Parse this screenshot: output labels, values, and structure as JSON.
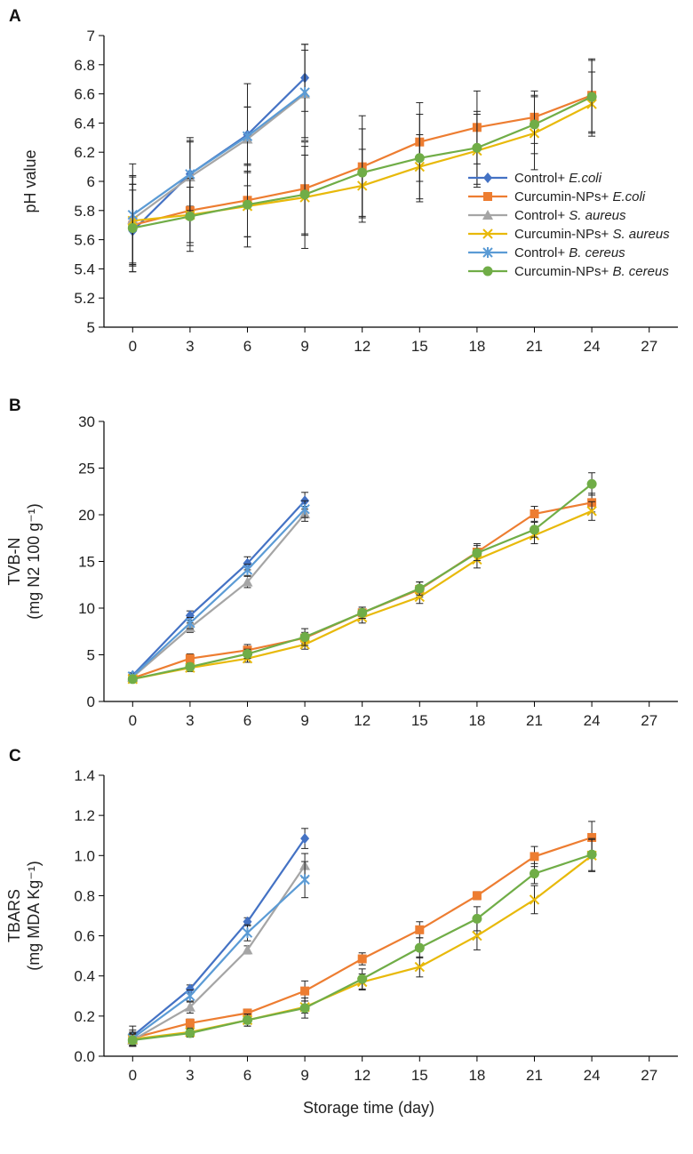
{
  "chart_data": [
    {
      "panel": "A",
      "type": "line",
      "ylabel_lines": [
        "pH value"
      ],
      "xlabel": "",
      "ylim": [
        5,
        7
      ],
      "ytick_step": 0.2,
      "ytick_decimals": 1,
      "xlim": [
        -1.5,
        28.5
      ],
      "xticks": [
        0,
        3,
        6,
        9,
        12,
        15,
        18,
        21,
        24,
        27
      ],
      "legend_position": "middle-right",
      "series": [
        {
          "name": "Control+ ",
          "name_italic": "E.coli",
          "color": "#4472c4",
          "marker": "diamond",
          "x": [
            0,
            3,
            6,
            9
          ],
          "y": [
            5.66,
            6.05,
            6.32,
            6.71
          ],
          "err": [
            0.28,
            0.22,
            0.35,
            0.23
          ]
        },
        {
          "name": "Curcumin-NPs+ ",
          "name_italic": "E.coli",
          "color": "#ed7d31",
          "marker": "square",
          "x": [
            0,
            3,
            6,
            9,
            12,
            15,
            18,
            21,
            24
          ],
          "y": [
            5.7,
            5.8,
            5.87,
            5.95,
            6.1,
            6.27,
            6.37,
            6.44,
            6.59
          ],
          "err": [
            0.28,
            0.22,
            0.25,
            0.32,
            0.35,
            0.27,
            0.25,
            0.18,
            0.25
          ]
        },
        {
          "name": "Control+ ",
          "name_italic": "S. aureus",
          "color": "#a5a5a5",
          "marker": "triangle",
          "x": [
            0,
            3,
            6,
            9
          ],
          "y": [
            5.74,
            6.03,
            6.29,
            6.6
          ],
          "err": [
            0.3,
            0.25,
            0.22,
            0.3
          ]
        },
        {
          "name": "Curcumin-NPs+ ",
          "name_italic": "S. aureus",
          "color": "#e8b90a",
          "marker": "x",
          "x": [
            0,
            3,
            6,
            9,
            12,
            15,
            18,
            21,
            24
          ],
          "y": [
            5.73,
            5.77,
            5.83,
            5.89,
            5.97,
            6.1,
            6.21,
            6.33,
            6.53
          ],
          "err": [
            0.3,
            0.25,
            0.28,
            0.35,
            0.25,
            0.22,
            0.25,
            0.25,
            0.22
          ]
        },
        {
          "name": "Control+ ",
          "name_italic": "B. cereus",
          "color": "#5b9bd5",
          "marker": "star",
          "x": [
            0,
            3,
            6,
            9
          ],
          "y": [
            5.77,
            6.05,
            6.31,
            6.61
          ],
          "err": [
            0.35,
            0.25,
            0.2,
            0.33
          ]
        },
        {
          "name": "Curcumin-NPs+ ",
          "name_italic": "B. cereus",
          "color": "#70ad47",
          "marker": "circle",
          "x": [
            0,
            3,
            6,
            9,
            12,
            15,
            18,
            21,
            24
          ],
          "y": [
            5.68,
            5.76,
            5.84,
            5.91,
            6.06,
            6.16,
            6.23,
            6.39,
            6.58
          ],
          "err": [
            0.3,
            0.2,
            0.22,
            0.27,
            0.3,
            0.3,
            0.25,
            0.2,
            0.25
          ]
        }
      ]
    },
    {
      "panel": "B",
      "type": "line",
      "ylabel_lines": [
        "TVB-N",
        "(mg N2 100 g⁻¹)"
      ],
      "xlabel": "",
      "ylim": [
        0,
        30
      ],
      "ytick_step": 5,
      "ytick_decimals": 0,
      "xlim": [
        -1.5,
        28.5
      ],
      "xticks": [
        0,
        3,
        6,
        9,
        12,
        15,
        18,
        21,
        24,
        27
      ],
      "series": [
        {
          "name": "Control+ E.coli",
          "color": "#4472c4",
          "marker": "diamond",
          "x": [
            0,
            3,
            6,
            9
          ],
          "y": [
            2.8,
            9.2,
            14.8,
            21.5
          ],
          "err": [
            0.3,
            0.5,
            0.7,
            0.9
          ]
        },
        {
          "name": "Curcumin-NPs+ E.coli",
          "color": "#ed7d31",
          "marker": "square",
          "x": [
            0,
            3,
            6,
            9,
            12,
            15,
            18,
            21,
            24
          ],
          "y": [
            2.5,
            4.6,
            5.5,
            6.8,
            9.5,
            12.0,
            16.0,
            20.1,
            21.3
          ],
          "err": [
            0.3,
            0.5,
            0.6,
            0.6,
            0.6,
            0.8,
            0.9,
            0.8,
            1.0
          ]
        },
        {
          "name": "Control+ S. aureus",
          "color": "#a5a5a5",
          "marker": "triangle",
          "x": [
            0,
            3,
            6,
            9
          ],
          "y": [
            2.6,
            7.9,
            12.8,
            20.1
          ],
          "err": [
            0.3,
            0.5,
            0.6,
            0.8
          ]
        },
        {
          "name": "Curcumin-NPs+ S. aureus",
          "color": "#e8b90a",
          "marker": "x",
          "x": [
            0,
            3,
            6,
            9,
            12,
            15,
            18,
            21,
            24
          ],
          "y": [
            2.4,
            3.6,
            4.6,
            6.1,
            9.0,
            11.2,
            15.2,
            17.8,
            20.4
          ],
          "err": [
            0.2,
            0.4,
            0.4,
            0.5,
            0.6,
            0.7,
            0.9,
            0.9,
            1.0
          ]
        },
        {
          "name": "Control+ B. cereus",
          "color": "#5b9bd5",
          "marker": "star",
          "x": [
            0,
            3,
            6,
            9
          ],
          "y": [
            2.7,
            8.4,
            14.1,
            20.6
          ],
          "err": [
            0.3,
            0.6,
            0.6,
            0.9
          ]
        },
        {
          "name": "Curcumin-NPs+ B. cereus",
          "color": "#70ad47",
          "marker": "circle",
          "x": [
            0,
            3,
            6,
            9,
            12,
            15,
            18,
            21,
            24
          ],
          "y": [
            2.4,
            3.7,
            5.1,
            6.9,
            9.5,
            12.1,
            15.9,
            18.4,
            23.3
          ],
          "err": [
            0.2,
            0.3,
            0.5,
            0.9,
            0.6,
            0.7,
            0.8,
            0.8,
            1.2
          ]
        }
      ]
    },
    {
      "panel": "C",
      "type": "line",
      "ylabel_lines": [
        "TBARS",
        "(mg MDA Kg⁻¹)"
      ],
      "xlabel": "Storage time (day)",
      "ylim": [
        0,
        1.4
      ],
      "ytick_step": 0.2,
      "ytick_decimals": 1,
      "xlim": [
        -1.5,
        28.5
      ],
      "xticks": [
        0,
        3,
        6,
        9,
        12,
        15,
        18,
        21,
        24,
        27
      ],
      "series": [
        {
          "name": "Control+ E.coli",
          "color": "#4472c4",
          "marker": "diamond",
          "x": [
            0,
            3,
            6,
            9
          ],
          "y": [
            0.1,
            0.335,
            0.67,
            1.085
          ],
          "err": [
            0.05,
            0.02,
            0.02,
            0.05
          ]
        },
        {
          "name": "Curcumin-NPs+ E.coli",
          "color": "#ed7d31",
          "marker": "square",
          "x": [
            0,
            3,
            6,
            9,
            12,
            15,
            18,
            21,
            24
          ],
          "y": [
            0.09,
            0.165,
            0.215,
            0.325,
            0.485,
            0.63,
            0.8,
            0.995,
            1.09
          ],
          "err": [
            0.03,
            0.02,
            0.02,
            0.05,
            0.03,
            0.04,
            0.02,
            0.05,
            0.08
          ]
        },
        {
          "name": "Control+ S. aureus",
          "color": "#a5a5a5",
          "marker": "triangle",
          "x": [
            0,
            3,
            6,
            9
          ],
          "y": [
            0.08,
            0.245,
            0.53,
            0.95
          ],
          "err": [
            0.03,
            0.03,
            0.02,
            0.06
          ]
        },
        {
          "name": "Curcumin-NPs+ S. aureus",
          "color": "#e8b90a",
          "marker": "x",
          "x": [
            0,
            3,
            6,
            9,
            12,
            15,
            18,
            21,
            24
          ],
          "y": [
            0.085,
            0.12,
            0.18,
            0.245,
            0.37,
            0.445,
            0.6,
            0.78,
            1.0
          ],
          "err": [
            0.03,
            0.02,
            0.03,
            0.03,
            0.04,
            0.05,
            0.07,
            0.07,
            0.08
          ]
        },
        {
          "name": "Control+ B. cereus",
          "color": "#5b9bd5",
          "marker": "star",
          "x": [
            0,
            3,
            6,
            9
          ],
          "y": [
            0.09,
            0.3,
            0.615,
            0.88
          ],
          "err": [
            0.04,
            0.03,
            0.04,
            0.09
          ]
        },
        {
          "name": "Curcumin-NPs+ B. cereus",
          "color": "#70ad47",
          "marker": "circle",
          "x": [
            0,
            3,
            6,
            9,
            12,
            15,
            18,
            21,
            24
          ],
          "y": [
            0.08,
            0.115,
            0.18,
            0.24,
            0.385,
            0.54,
            0.685,
            0.91,
            1.005
          ],
          "err": [
            0.03,
            0.02,
            0.03,
            0.05,
            0.05,
            0.05,
            0.06,
            0.05,
            0.08
          ]
        }
      ]
    }
  ]
}
